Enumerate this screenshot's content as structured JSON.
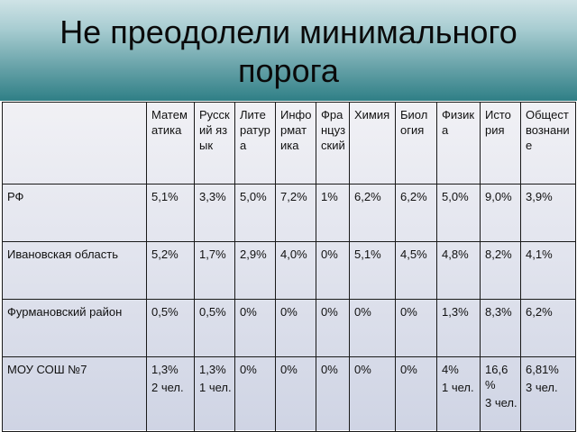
{
  "title": {
    "line1": "Не преодолели минимального",
    "line2": "порога"
  },
  "table": {
    "subjects": [
      "Математика",
      "Русский язык",
      "Литература",
      "Информатика",
      "Французский",
      "Химия",
      "Биология",
      "Физика",
      "История",
      "Обществознание"
    ],
    "rows": [
      {
        "region": "РФ",
        "cells": [
          {
            "value": "5,1%"
          },
          {
            "value": "3,3%"
          },
          {
            "value": "5,0%"
          },
          {
            "value": "7,2%"
          },
          {
            "value": "1%"
          },
          {
            "value": "6,2%"
          },
          {
            "value": "6,2%"
          },
          {
            "value": "5,0%"
          },
          {
            "value": "9,0%"
          },
          {
            "value": "3,9%"
          }
        ]
      },
      {
        "region": "Ивановская область",
        "cells": [
          {
            "value": "5,2%"
          },
          {
            "value": "1,7%"
          },
          {
            "value": "2,9%"
          },
          {
            "value": "4,0%"
          },
          {
            "value": "0%"
          },
          {
            "value": "5,1%"
          },
          {
            "value": "4,5%"
          },
          {
            "value": "4,8%"
          },
          {
            "value": "8,2%"
          },
          {
            "value": "4,1%"
          }
        ]
      },
      {
        "region": "Фурмановский район",
        "cells": [
          {
            "value": "0,5%"
          },
          {
            "value": "0,5%"
          },
          {
            "value": "0%"
          },
          {
            "value": "0%"
          },
          {
            "value": "0%"
          },
          {
            "value": "0%"
          },
          {
            "value": "0%"
          },
          {
            "value": "1,3%"
          },
          {
            "value": "8,3%"
          },
          {
            "value": "6,2%"
          }
        ]
      },
      {
        "region": "МОУ СОШ №7",
        "cells": [
          {
            "value": "1,3%",
            "count": "2 чел."
          },
          {
            "value": "1,3%",
            "count": "1 чел."
          },
          {
            "value": "0%"
          },
          {
            "value": "0%"
          },
          {
            "value": "0%"
          },
          {
            "value": "0%"
          },
          {
            "value": "0%"
          },
          {
            "value": "4%",
            "count": "1 чел."
          },
          {
            "value": "16,6 %",
            "count": "3 чел."
          },
          {
            "value": "6,81%",
            "count": "3 чел."
          }
        ]
      }
    ]
  },
  "colors": {
    "header_gradient_top": "#cfe3e6",
    "header_gradient_bottom": "#2f7f86",
    "table_background": "#e4e6ef",
    "grid_line": "#1a1a1a"
  }
}
